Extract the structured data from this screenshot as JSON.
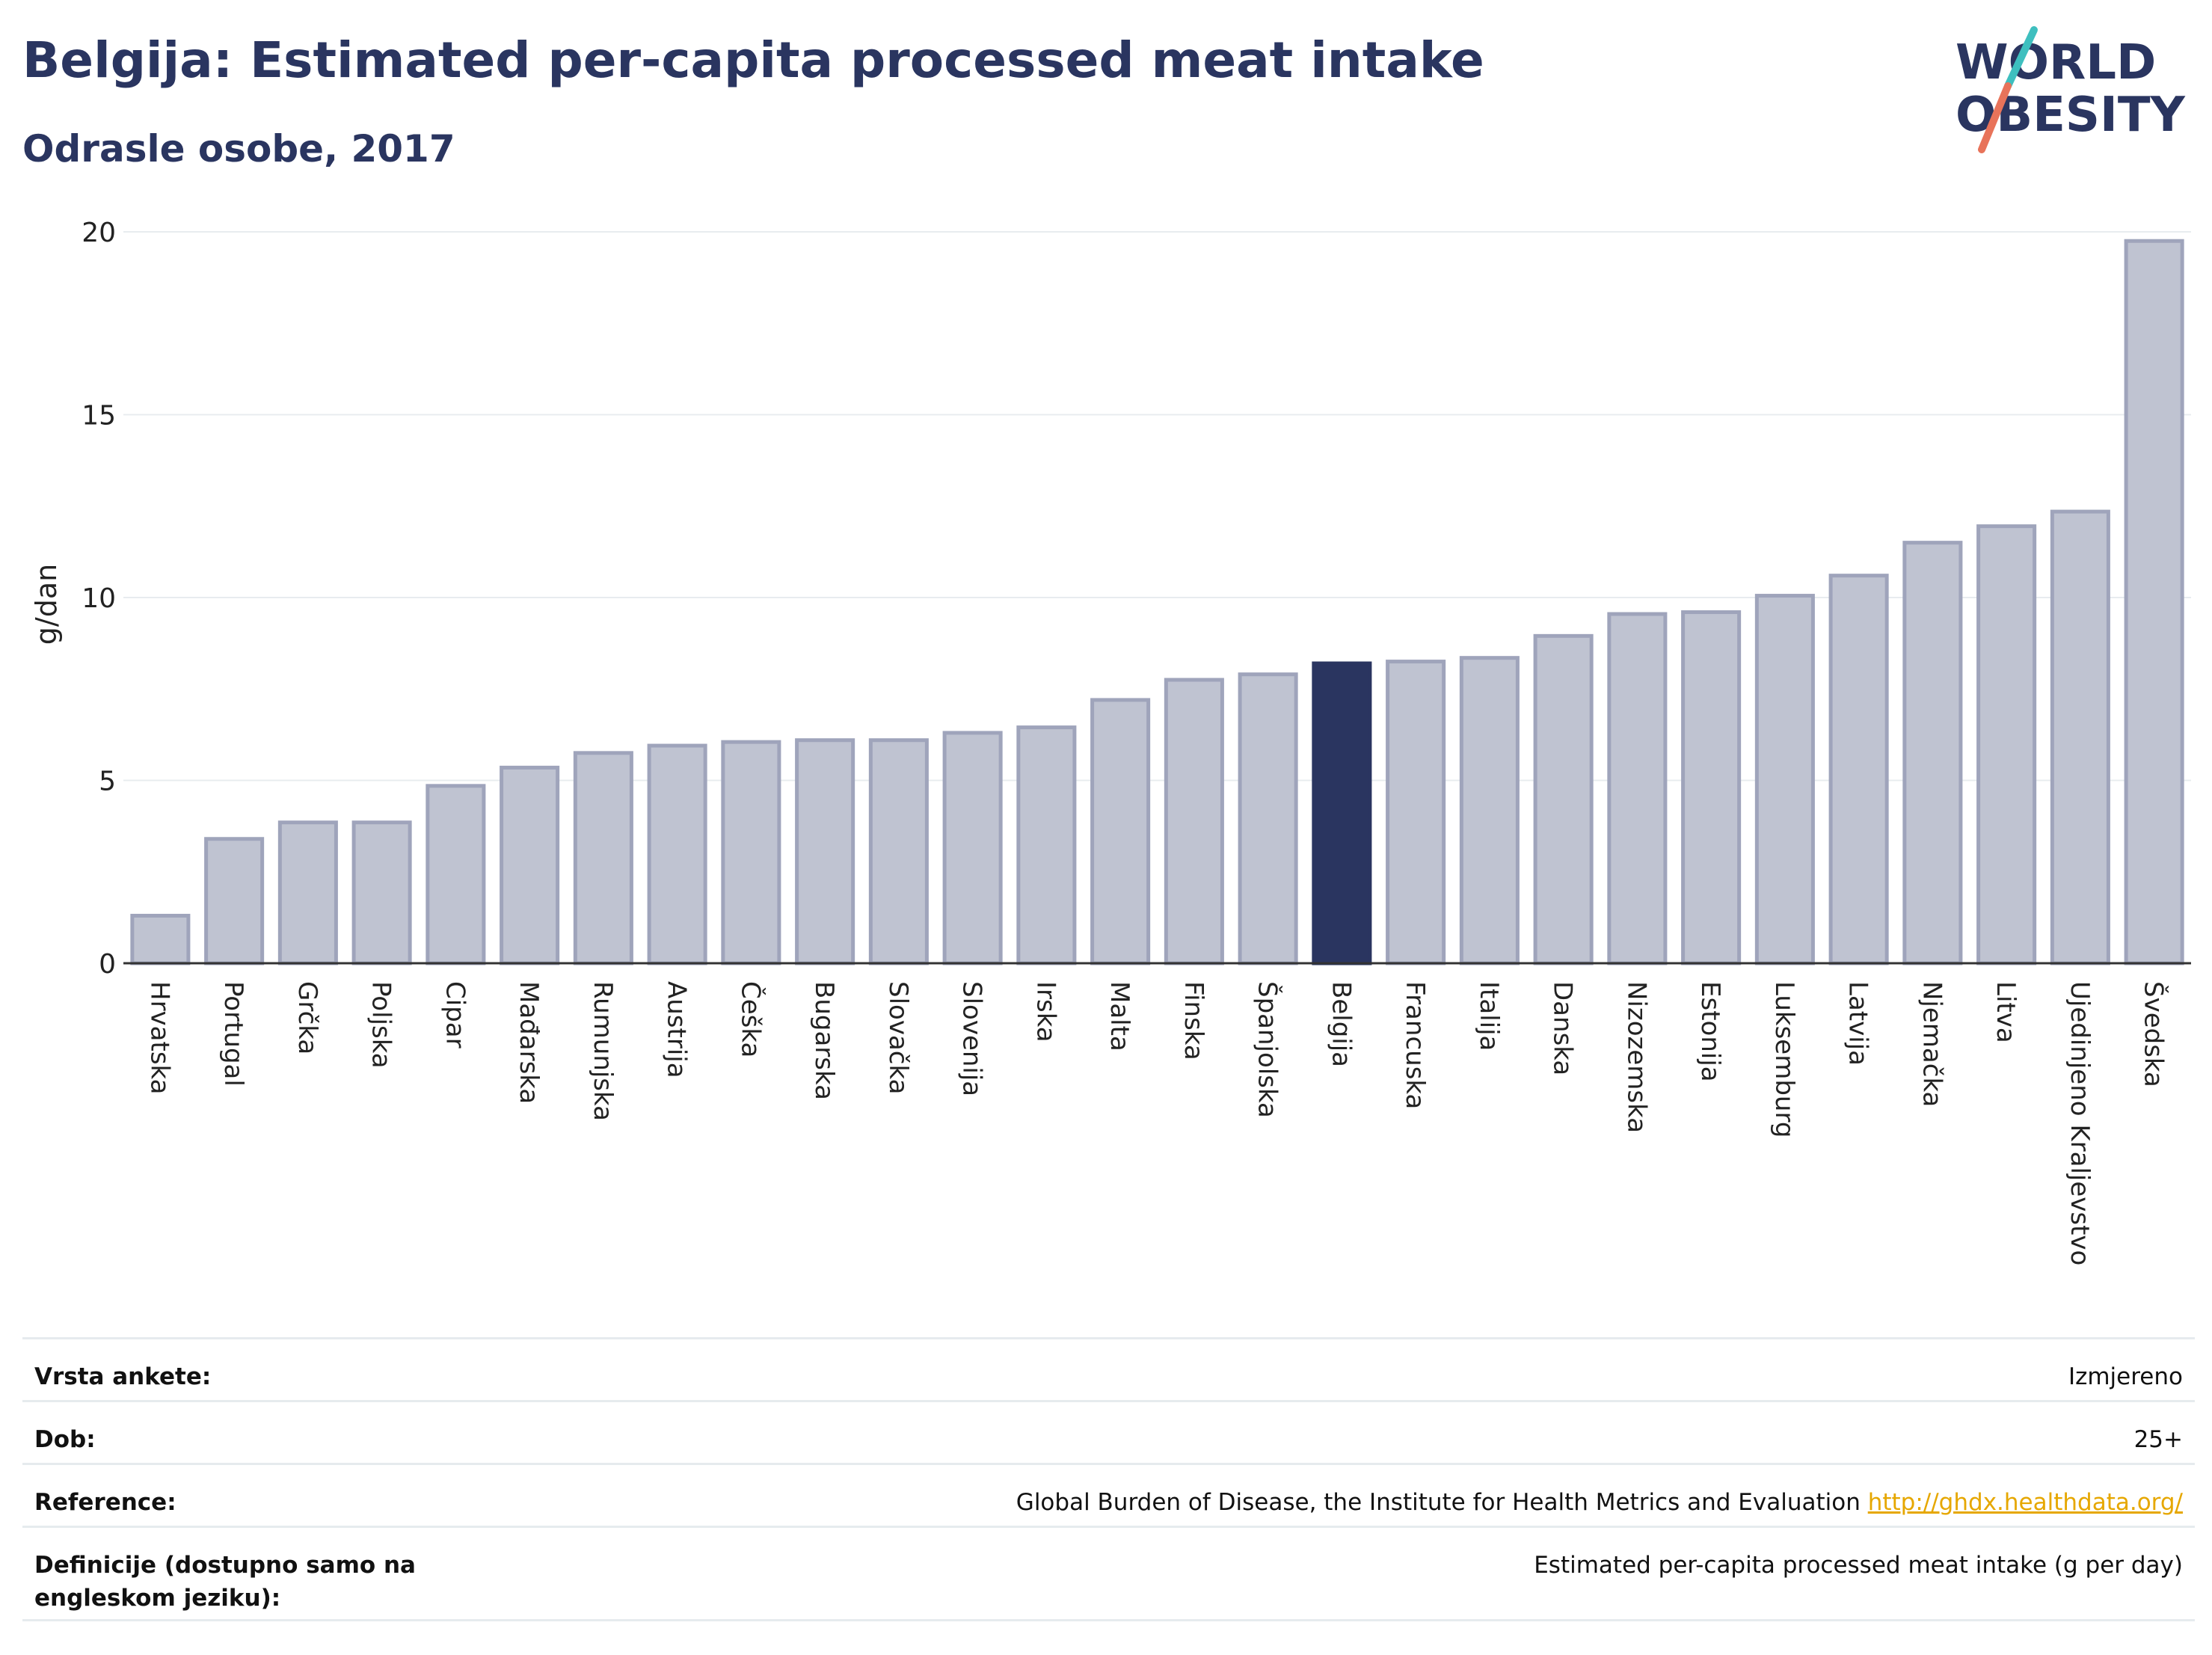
{
  "header": {
    "title": "Belgija: Estimated per-capita processed meat intake",
    "subtitle": "Odrasle osobe, 2017"
  },
  "logo": {
    "line1": "WORLD",
    "line2": "OBESITY",
    "accent_teal": "#3ebfbf",
    "accent_coral": "#e8735a",
    "text_color": "#2a3560"
  },
  "colors": {
    "bar_default": "#bfc3d1",
    "bar_border": "#9fa4bb",
    "bar_highlight": "#2a3560",
    "grid": "#e8ecef",
    "axis_text": "#222222"
  },
  "chart_data": {
    "type": "bar",
    "ylabel": "g/dan",
    "ylim": [
      0,
      20
    ],
    "yticks": [
      "0",
      "5",
      "10",
      "15",
      "20"
    ],
    "grid": true,
    "highlight": "Belgija",
    "categories": [
      "Hrvatska",
      "Portugal",
      "Grčka",
      "Poljska",
      "Cipar",
      "Mađarska",
      "Rumunjska",
      "Austrija",
      "Češka",
      "Bugarska",
      "Slovačka",
      "Slovenija",
      "Irska",
      "Malta",
      "Finska",
      "Španjolska",
      "Belgija",
      "Francuska",
      "Italija",
      "Danska",
      "Nizozemska",
      "Estonija",
      "Luksemburg",
      "Latvija",
      "Njemačka",
      "Litva",
      "Ujedinjeno Kraljevstvo",
      "Švedska"
    ],
    "values": [
      1.3,
      3.4,
      3.85,
      3.85,
      4.85,
      5.35,
      5.75,
      5.95,
      6.05,
      6.1,
      6.1,
      6.3,
      6.45,
      7.2,
      7.75,
      7.9,
      8.2,
      8.25,
      8.35,
      8.95,
      9.55,
      9.6,
      10.05,
      10.6,
      11.5,
      11.95,
      12.35,
      19.75
    ]
  },
  "meta": {
    "rows": [
      {
        "label": "Vrsta ankete:",
        "value": "Izmjereno"
      },
      {
        "label": "Dob:",
        "value": "25+"
      },
      {
        "label": "Reference:",
        "value": "Global Burden of Disease, the Institute for Health Metrics and Evaluation",
        "link": "http://ghdx.healthdata.org/"
      },
      {
        "label": "Definicije (dostupno samo na engleskom jeziku):",
        "value": "Estimated per-capita processed meat intake (g per day)"
      }
    ]
  }
}
